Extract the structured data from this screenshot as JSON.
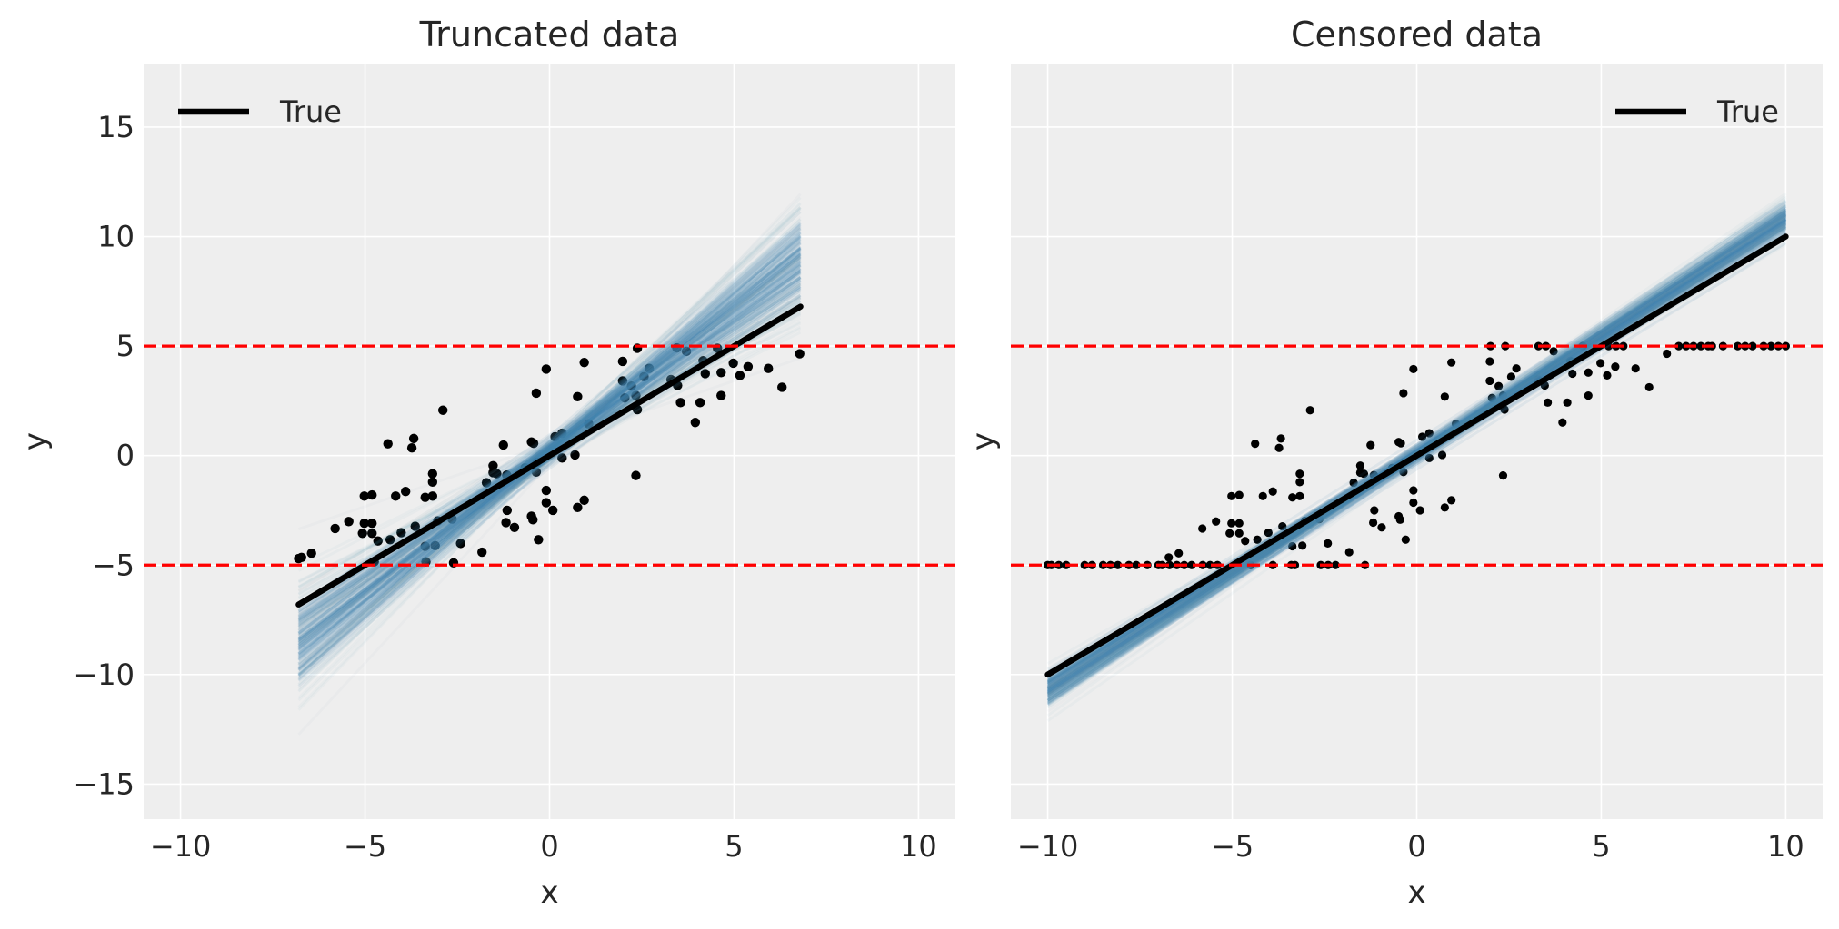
{
  "chart_data": [
    {
      "type": "line",
      "title": "Truncated data",
      "xlabel": "x",
      "ylabel": "y",
      "xlim": [
        -11,
        11
      ],
      "ylim": [
        -16.6,
        17.9
      ],
      "grid": true,
      "xticks": [
        -10,
        -5,
        0,
        5,
        10
      ],
      "xticklabels": [
        "−10",
        "−5",
        "0",
        "5",
        "10"
      ],
      "yticks": [
        -15,
        -10,
        -5,
        0,
        5,
        10,
        15
      ],
      "yticklabels": [
        "−15",
        "−10",
        "−5",
        "0",
        "5",
        "10",
        "15"
      ],
      "legend": {
        "placement": "top-left",
        "entries": [
          "True"
        ]
      },
      "thresholds": [
        -5,
        5
      ],
      "true_line": {
        "label": "True",
        "slope": 1,
        "intercept": 0,
        "x": [
          -6.8,
          6.8
        ]
      },
      "posterior": {
        "color": "#4682b4",
        "draws": 200,
        "slope_mean": 1.27,
        "slope_sd": 0.2,
        "intercept_mean": 0.2,
        "intercept_sd": 0.3,
        "x": [
          -6.8,
          6.8
        ]
      },
      "points": [
        [
          -6.8,
          -4.7
        ],
        [
          -6.72,
          -4.65
        ],
        [
          -6.45,
          -4.46
        ],
        [
          -5.81,
          -3.33
        ],
        [
          -5.44,
          -3.01
        ],
        [
          -5.02,
          -1.85
        ],
        [
          -4.81,
          -1.8
        ],
        [
          -5.02,
          -3.09
        ],
        [
          -4.81,
          -3.09
        ],
        [
          -5.07,
          -3.55
        ],
        [
          -4.81,
          -3.55
        ],
        [
          -4.65,
          -3.9
        ],
        [
          -4.38,
          0.54
        ],
        [
          -4.32,
          -3.84
        ],
        [
          -4.17,
          -1.85
        ],
        [
          -4.02,
          -3.52
        ],
        [
          -3.9,
          -1.64
        ],
        [
          -3.73,
          0.35
        ],
        [
          -3.68,
          0.78
        ],
        [
          -3.64,
          -3.23
        ],
        [
          -3.37,
          -1.91
        ],
        [
          -3.17,
          -0.83
        ],
        [
          -3.17,
          -1.21
        ],
        [
          -3.17,
          -1.85
        ],
        [
          -3.37,
          -4.14
        ],
        [
          -3.1,
          -4.11
        ],
        [
          -3.03,
          -2.98
        ],
        [
          -2.89,
          2.07
        ],
        [
          -2.64,
          -2.9
        ],
        [
          -2.41,
          -4.01
        ],
        [
          -1.83,
          -4.41
        ],
        [
          -1.71,
          -1.24
        ],
        [
          -1.53,
          -0.46
        ],
        [
          -1.53,
          -0.78
        ],
        [
          -1.43,
          -0.83
        ],
        [
          -1.25,
          0.48
        ],
        [
          -1.16,
          -0.89
        ],
        [
          -1.15,
          -2.5
        ],
        [
          -1.18,
          -3.06
        ],
        [
          -0.95,
          -3.28
        ],
        [
          -0.66,
          -0.56
        ],
        [
          -0.49,
          0.62
        ],
        [
          -0.43,
          0.56
        ],
        [
          -0.49,
          -2.77
        ],
        [
          -0.45,
          -2.93
        ],
        [
          -0.36,
          2.85
        ],
        [
          -0.34,
          -0.3
        ],
        [
          -0.36,
          -0.75
        ],
        [
          -0.3,
          -3.84
        ],
        [
          -0.09,
          3.95
        ],
        [
          -0.09,
          -1.59
        ],
        [
          -0.09,
          -2.15
        ],
        [
          0.09,
          -2.5
        ],
        [
          0.15,
          0.86
        ],
        [
          0.34,
          1.02
        ],
        [
          0.34,
          -0.11
        ],
        [
          0.69,
          0.03
        ],
        [
          0.76,
          2.69
        ],
        [
          0.76,
          -2.37
        ],
        [
          0.94,
          4.25
        ],
        [
          0.94,
          -2.04
        ],
        [
          1.06,
          1.45
        ],
        [
          1.98,
          4.3
        ],
        [
          1.98,
          3.41
        ],
        [
          2.04,
          2.63
        ],
        [
          2.22,
          3.17
        ],
        [
          2.34,
          2.74
        ],
        [
          2.38,
          2.1
        ],
        [
          2.34,
          -0.91
        ],
        [
          2.56,
          3.6
        ],
        [
          2.7,
          3.98
        ],
        [
          3.29,
          3.47
        ],
        [
          3.47,
          3.2
        ],
        [
          3.55,
          2.42
        ],
        [
          3.71,
          4.76
        ],
        [
          4.08,
          2.42
        ],
        [
          3.95,
          1.51
        ],
        [
          4.16,
          4.33
        ],
        [
          4.22,
          3.74
        ],
        [
          4.65,
          3.79
        ],
        [
          4.65,
          2.74
        ],
        [
          4.98,
          4.22
        ],
        [
          5.16,
          3.66
        ],
        [
          5.38,
          4.06
        ],
        [
          5.93,
          3.98
        ],
        [
          6.3,
          3.12
        ],
        [
          6.78,
          4.65
        ],
        [
          -4.75,
          -4.85
        ],
        [
          -3.35,
          -4.85
        ],
        [
          -2.6,
          -4.9
        ],
        [
          2.38,
          4.9
        ],
        [
          3.45,
          4.92
        ],
        [
          4.55,
          4.9
        ]
      ]
    },
    {
      "type": "line",
      "title": "Censored data",
      "xlabel": "x",
      "ylabel": "y",
      "xlim": [
        -11,
        11
      ],
      "ylim": [
        -16.6,
        17.9
      ],
      "grid": true,
      "xticks": [
        -10,
        -5,
        0,
        5,
        10
      ],
      "xticklabels": [
        "−10",
        "−5",
        "0",
        "5",
        "10"
      ],
      "yticks": [
        -15,
        -10,
        -5,
        0,
        5,
        10,
        15
      ],
      "legend": {
        "placement": "top-right",
        "entries": [
          "True"
        ]
      },
      "thresholds": [
        -5,
        5
      ],
      "true_line": {
        "label": "True",
        "slope": 1,
        "intercept": 0,
        "x": [
          -10,
          10
        ]
      },
      "posterior": {
        "color": "#4682b4",
        "draws": 200,
        "slope_mean": 1.075,
        "slope_sd": 0.04,
        "intercept_mean": 0.05,
        "intercept_sd": 0.2,
        "x": [
          -10,
          10
        ]
      },
      "censored_low_x": [
        -10,
        -9.9,
        -9.7,
        -9.5,
        -9.0,
        -8.8,
        -8.5,
        -8.3,
        -8.1,
        -7.8,
        -7.6,
        -7.3,
        -7.0,
        -6.9,
        -6.7,
        -6.5,
        -6.3,
        -6.1,
        -5.8,
        -5.6,
        -5.4,
        -4.5,
        -3.9,
        -3.4,
        -3.3,
        -2.6,
        -2.4,
        -2.2,
        -1.4
      ],
      "censored_high_x": [
        2.0,
        2.4,
        3.3,
        3.5,
        4.5,
        5.2,
        5.4,
        5.6,
        7.1,
        7.3,
        7.5,
        7.7,
        7.9,
        8.0,
        8.3,
        8.7,
        8.9,
        9.1,
        9.4,
        9.6,
        9.8,
        10
      ],
      "points": [
        [
          -6.72,
          -4.65
        ],
        [
          -6.45,
          -4.46
        ],
        [
          -5.81,
          -3.33
        ],
        [
          -5.44,
          -3.01
        ],
        [
          -5.02,
          -1.85
        ],
        [
          -4.81,
          -1.8
        ],
        [
          -5.02,
          -3.09
        ],
        [
          -4.81,
          -3.09
        ],
        [
          -5.07,
          -3.55
        ],
        [
          -4.81,
          -3.55
        ],
        [
          -4.65,
          -3.9
        ],
        [
          -4.38,
          0.54
        ],
        [
          -4.32,
          -3.84
        ],
        [
          -4.17,
          -1.85
        ],
        [
          -4.02,
          -3.52
        ],
        [
          -3.9,
          -1.64
        ],
        [
          -3.73,
          0.35
        ],
        [
          -3.68,
          0.78
        ],
        [
          -3.64,
          -3.23
        ],
        [
          -3.37,
          -1.91
        ],
        [
          -3.17,
          -0.83
        ],
        [
          -3.17,
          -1.21
        ],
        [
          -3.17,
          -1.85
        ],
        [
          -3.37,
          -4.14
        ],
        [
          -3.1,
          -4.11
        ],
        [
          -3.03,
          -2.98
        ],
        [
          -2.89,
          2.07
        ],
        [
          -2.64,
          -2.9
        ],
        [
          -2.41,
          -4.01
        ],
        [
          -1.83,
          -4.41
        ],
        [
          -1.71,
          -1.24
        ],
        [
          -1.53,
          -0.46
        ],
        [
          -1.53,
          -0.78
        ],
        [
          -1.43,
          -0.83
        ],
        [
          -1.25,
          0.48
        ],
        [
          -1.16,
          -0.89
        ],
        [
          -1.15,
          -2.5
        ],
        [
          -1.18,
          -3.06
        ],
        [
          -0.95,
          -3.28
        ],
        [
          -0.66,
          -0.56
        ],
        [
          -0.49,
          0.62
        ],
        [
          -0.43,
          0.56
        ],
        [
          -0.49,
          -2.77
        ],
        [
          -0.45,
          -2.93
        ],
        [
          -0.36,
          2.85
        ],
        [
          -0.34,
          -0.3
        ],
        [
          -0.36,
          -0.75
        ],
        [
          -0.3,
          -3.84
        ],
        [
          -0.09,
          3.95
        ],
        [
          -0.09,
          -1.59
        ],
        [
          -0.09,
          -2.15
        ],
        [
          0.09,
          -2.5
        ],
        [
          0.15,
          0.86
        ],
        [
          0.34,
          1.02
        ],
        [
          0.34,
          -0.11
        ],
        [
          0.69,
          0.03
        ],
        [
          0.76,
          2.69
        ],
        [
          0.76,
          -2.37
        ],
        [
          0.94,
          4.25
        ],
        [
          0.94,
          -2.04
        ],
        [
          1.06,
          1.45
        ],
        [
          1.98,
          4.3
        ],
        [
          1.98,
          3.41
        ],
        [
          2.04,
          2.63
        ],
        [
          2.22,
          3.17
        ],
        [
          2.34,
          2.74
        ],
        [
          2.38,
          2.1
        ],
        [
          2.34,
          -0.91
        ],
        [
          2.56,
          3.6
        ],
        [
          2.7,
          3.98
        ],
        [
          3.29,
          3.47
        ],
        [
          3.47,
          3.2
        ],
        [
          3.55,
          2.42
        ],
        [
          3.71,
          4.76
        ],
        [
          4.08,
          2.42
        ],
        [
          3.95,
          1.51
        ],
        [
          4.16,
          4.33
        ],
        [
          4.22,
          3.74
        ],
        [
          4.65,
          3.79
        ],
        [
          4.65,
          2.74
        ],
        [
          4.98,
          4.22
        ],
        [
          5.16,
          3.66
        ],
        [
          5.38,
          4.06
        ],
        [
          5.93,
          3.98
        ],
        [
          6.3,
          3.12
        ],
        [
          6.78,
          4.65
        ]
      ]
    }
  ],
  "colors": {
    "background": "#eeeeee",
    "grid": "#ffffff",
    "band": "#4682b4",
    "threshold": "#ff0000",
    "true_line": "#000000",
    "points": "#000000"
  }
}
